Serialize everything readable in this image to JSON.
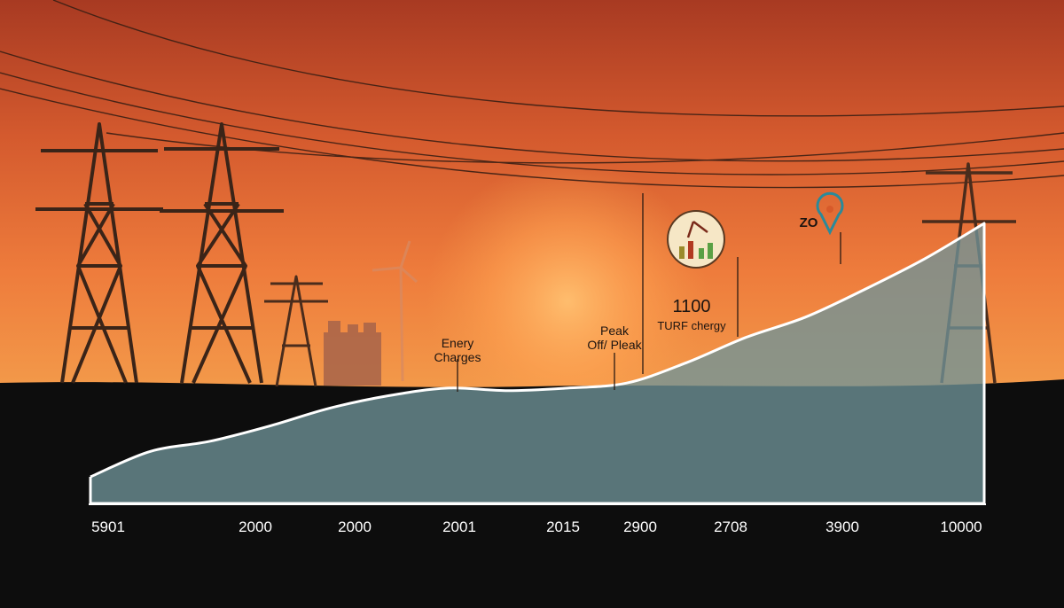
{
  "chart_data": {
    "type": "area",
    "x_tick_labels": [
      "5901",
      "2000",
      "2000",
      "2001",
      "2015",
      "2900",
      "2708",
      "3900",
      "10000"
    ],
    "series": [
      {
        "values": [
          0,
          10,
          14,
          20,
          27,
          32,
          35,
          34,
          35,
          37,
          45,
          55,
          63,
          74,
          86,
          100
        ]
      }
    ],
    "ylim": [
      0,
      100
    ],
    "grid": false,
    "legend": "none",
    "annotations": [
      {
        "lines": [
          "Enery",
          "Charges"
        ],
        "at_tick": 3
      },
      {
        "lines": [
          "Peak",
          "Off/ Pleak"
        ],
        "at_tick": 5
      },
      {
        "lines": [
          "1100",
          "TURF chergy"
        ],
        "at_tick": 6
      },
      {
        "lines": [
          "ZO"
        ],
        "at_tick": 7
      }
    ],
    "colors": {
      "sky_top": "#b03e22",
      "sky_mid": "#e8703a",
      "sun": "#ffb862",
      "ground": "#0d0d0d",
      "area_fill": "#6f9498",
      "area_stroke": "#ffffff",
      "silhouette": "#3a2418"
    },
    "icons": [
      "transmission-tower-icon",
      "wind-turbine-icon",
      "factory-icon",
      "bar-chart-badge-icon",
      "location-pin-icon"
    ]
  }
}
